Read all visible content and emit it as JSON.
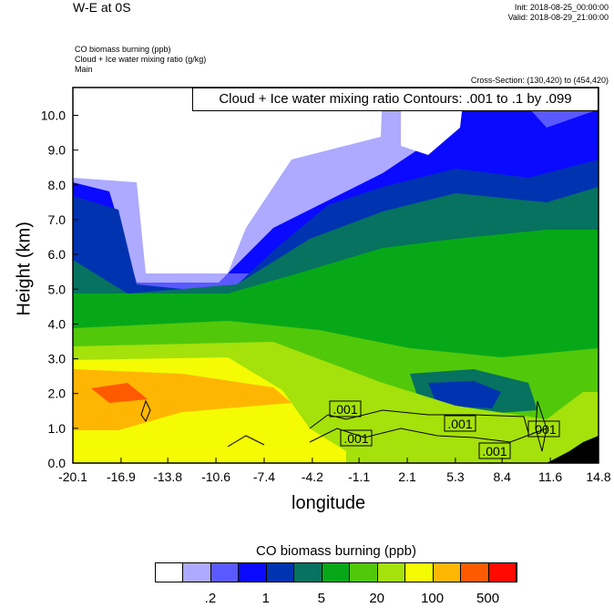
{
  "header": {
    "title": "W-E at 0S",
    "init": "Init: 2018-08-25_00:00:00",
    "valid": "Valid: 2018-08-29_21:00:00",
    "field1": "CO biomass burning   (ppb)",
    "field2": "Cloud + Ice water mixing ratio   (g/kg)",
    "field3": "Main",
    "cross_section": "Cross-Section: (130,420) to (454,420)"
  },
  "chart_data": {
    "type": "heatmap",
    "title": "W-E at 0S",
    "xlabel": "longitude",
    "ylabel": "Height (km)",
    "xlim": [
      -20.1,
      14.8
    ],
    "ylim": [
      0.0,
      10.8
    ],
    "xticks": [
      "-20.1",
      "-16.9",
      "-13.8",
      "-10.6",
      "-7.4",
      "-4.2",
      "-1.1",
      "2.1",
      "5.3",
      "8.4",
      "11.6",
      "14.8"
    ],
    "yticks": [
      "0.0",
      "1.0",
      "2.0",
      "3.0",
      "4.0",
      "5.0",
      "6.0",
      "7.0",
      "8.0",
      "9.0",
      "10.0"
    ],
    "contour_title": "Cloud + Ice water mixing ratio Contours: .001 to .1 by .099",
    "contour_labels": [
      ".001",
      ".001",
      ".001",
      ".001",
      ".001"
    ],
    "colorbar": {
      "title": "CO biomass burning  (ppb)",
      "colors": [
        "#ffffff",
        "#adaaff",
        "#5a59ff",
        "#0a0aff",
        "#0033b0",
        "#06725f",
        "#07a818",
        "#52c80b",
        "#a5e10a",
        "#f4fb03",
        "#ffb602",
        "#ff5a00",
        "#ff0a00"
      ],
      "labels": [
        ".2",
        "1",
        "5",
        "20",
        "100",
        "500"
      ]
    }
  }
}
